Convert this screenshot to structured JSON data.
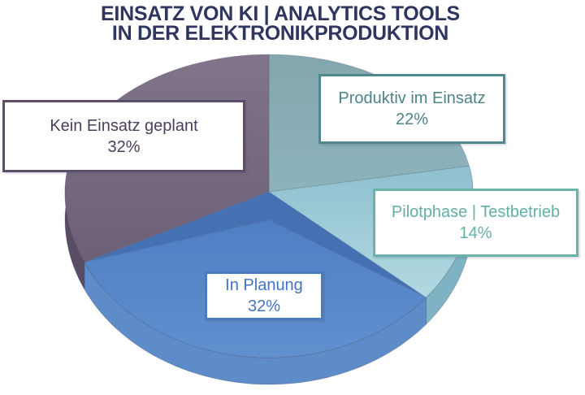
{
  "chart_data": {
    "type": "pie",
    "style": "3d-perspective",
    "title_lines": [
      "EINSATZ VON KI | ANALYTICS TOOLS",
      "IN DER ELEKTRONIKPRODUKTION"
    ],
    "title_color": "#2E355E",
    "start_angle_deg": 0,
    "direction": "clockwise",
    "legend_position": "callout-boxes-over-chart",
    "slices": [
      {
        "label": "Produktiv im Einsatz",
        "value": 22,
        "pct": "22%",
        "color": "#84A6AE",
        "color2": "#8CB3BC",
        "rim_color": "#6E9AA8",
        "box_border": "#4F888D",
        "text_color": "#4D8489"
      },
      {
        "label": "Pilotphase | Testbetrieb",
        "value": 14,
        "pct": "14%",
        "color": "#8FC0CF",
        "color2": "#B2D9E2",
        "rim_color": "#7FB2C2",
        "box_border": "#6AB3AA",
        "text_color": "#62AFA4"
      },
      {
        "label": "In Planung",
        "value": 32,
        "pct": "32%",
        "color": "#4F7FC3",
        "color2": "#6190CF",
        "rim_color": "#5E8CC8",
        "box_border": "#4C7AC2",
        "text_color": "#4273C5",
        "inner_edge_color": "#4571B2"
      },
      {
        "label": "Kein Einsatz geplant",
        "value": 32,
        "pct": "32%",
        "color": "#80758A",
        "color2": "#6C5F76",
        "rim_color": "#594C64",
        "box_border": "#5C4E68",
        "text_color": "#4B3E5B"
      }
    ]
  }
}
